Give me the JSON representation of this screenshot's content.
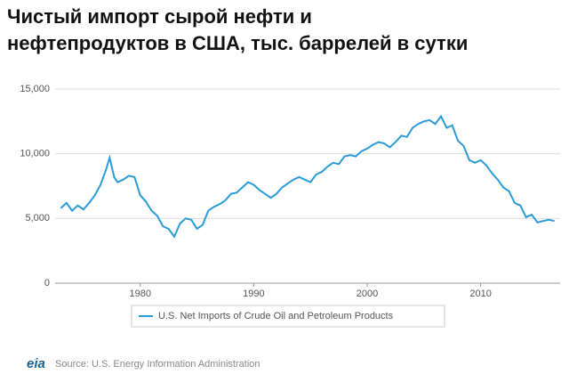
{
  "chart_data": {
    "type": "line",
    "title": [
      "Чистый импорт сырой нефти и",
      "нефтепродуктов в США, тыс. баррелей в сутки"
    ],
    "x": [
      1973,
      1973.5,
      1974,
      1974.5,
      1975,
      1975.5,
      1976,
      1976.5,
      1977,
      1977.3,
      1977.7,
      1978,
      1978.5,
      1979,
      1979.5,
      1980,
      1980.5,
      1981,
      1981.5,
      1982,
      1982.5,
      1983,
      1983.5,
      1984,
      1984.5,
      1985,
      1985.5,
      1986,
      1986.5,
      1987,
      1987.5,
      1988,
      1988.5,
      1989,
      1989.5,
      1990,
      1990.5,
      1991,
      1991.5,
      1992,
      1992.5,
      1993,
      1993.5,
      1994,
      1994.5,
      1995,
      1995.5,
      1996,
      1996.5,
      1997,
      1997.5,
      1998,
      1998.5,
      1999,
      1999.5,
      2000,
      2000.5,
      2001,
      2001.5,
      2002,
      2002.5,
      2003,
      2003.5,
      2004,
      2004.5,
      2005,
      2005.5,
      2006,
      2006.5,
      2007,
      2007.5,
      2008,
      2008.5,
      2009,
      2009.5,
      2010,
      2010.5,
      2011,
      2011.5,
      2012,
      2012.5,
      2013,
      2013.5,
      2014,
      2014.5,
      2015,
      2015.5,
      2016,
      2016.5
    ],
    "series": [
      {
        "name": "U.S. Net Imports of Crude Oil and Petroleum Products",
        "color": "#2a9bd6",
        "values": [
          5800,
          6200,
          5600,
          6000,
          5700,
          6200,
          6800,
          7600,
          8800,
          9700,
          8200,
          7800,
          8000,
          8300,
          8200,
          6800,
          6300,
          5600,
          5200,
          4400,
          4200,
          3600,
          4600,
          5000,
          4900,
          4200,
          4500,
          5600,
          5900,
          6100,
          6400,
          6900,
          7000,
          7400,
          7800,
          7600,
          7200,
          6900,
          6600,
          6900,
          7400,
          7700,
          8000,
          8200,
          8000,
          7800,
          8400,
          8600,
          9000,
          9300,
          9200,
          9800,
          9900,
          9800,
          10200,
          10400,
          10700,
          10900,
          10800,
          10500,
          10900,
          11400,
          11300,
          12000,
          12300,
          12500,
          12600,
          12300,
          12900,
          12000,
          12200,
          11000,
          10600,
          9500,
          9300,
          9500,
          9100,
          8500,
          8000,
          7400,
          7100,
          6200,
          6000,
          5100,
          5300,
          4700,
          4800,
          4900,
          4800
        ]
      }
    ],
    "xlim": [
      1972.5,
      2017
    ],
    "xticks": [
      1980,
      1990,
      2000,
      2010
    ],
    "ylim": [
      0,
      15000
    ],
    "yticks": [
      0,
      {
        "value": 5000,
        "label": "5,000"
      },
      {
        "value": 10000,
        "label": "10,000"
      },
      {
        "value": 15000,
        "label": "15,000"
      }
    ],
    "grid": true,
    "source": "Source: U.S. Energy Information Administration",
    "logo": "eia"
  }
}
